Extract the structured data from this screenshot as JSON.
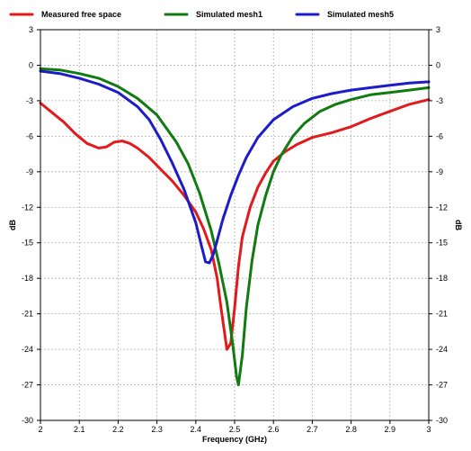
{
  "chart_data": {
    "type": "line",
    "title": "",
    "xlabel": "Frequency (GHz)",
    "ylabel": "dB",
    "xlim": [
      2,
      3
    ],
    "ylim": [
      -30,
      3
    ],
    "x_ticks": [
      2,
      2.1,
      2.2,
      2.3,
      2.4,
      2.5,
      2.6,
      2.7,
      2.8,
      2.9,
      3
    ],
    "x_tick_labels": [
      "2",
      "2.1",
      "2.2",
      "2.3",
      "2.4",
      "2.5",
      "2.6",
      "2.7",
      "2.8",
      "2.9",
      "3"
    ],
    "y_ticks": [
      3,
      0,
      -3,
      -6,
      -9,
      -12,
      -15,
      -18,
      -21,
      -24,
      -27,
      -30
    ],
    "y_tick_labels": [
      "3",
      "0",
      "-3",
      "-6",
      "-9",
      "-12",
      "-15",
      "-18",
      "-21",
      "-24",
      "-27",
      "-30"
    ],
    "grid": true,
    "legend": "top",
    "series": [
      {
        "name": "Measured free space",
        "color": "#e31a1c",
        "x": [
          2.0,
          2.03,
          2.06,
          2.09,
          2.12,
          2.15,
          2.17,
          2.19,
          2.21,
          2.23,
          2.25,
          2.28,
          2.31,
          2.34,
          2.37,
          2.4,
          2.42,
          2.44,
          2.455,
          2.465,
          2.475,
          2.48,
          2.49,
          2.5,
          2.51,
          2.52,
          2.54,
          2.56,
          2.58,
          2.6,
          2.63,
          2.66,
          2.7,
          2.75,
          2.8,
          2.85,
          2.9,
          2.95,
          3.0
        ],
        "y": [
          -3.2,
          -4.0,
          -4.8,
          -5.8,
          -6.6,
          -7.0,
          -6.9,
          -6.5,
          -6.4,
          -6.6,
          -7.0,
          -7.8,
          -8.8,
          -9.8,
          -11.0,
          -12.4,
          -13.8,
          -15.6,
          -18.0,
          -20.5,
          -22.8,
          -24.0,
          -23.5,
          -20.5,
          -17.0,
          -14.5,
          -12.0,
          -10.3,
          -9.1,
          -8.1,
          -7.3,
          -6.7,
          -6.1,
          -5.7,
          -5.2,
          -4.5,
          -3.9,
          -3.3,
          -2.9
        ]
      },
      {
        "name": "Simulated mesh1",
        "color": "#117a11",
        "x": [
          2.0,
          2.05,
          2.1,
          2.15,
          2.2,
          2.25,
          2.3,
          2.35,
          2.38,
          2.41,
          2.44,
          2.46,
          2.48,
          2.495,
          2.505,
          2.51,
          2.52,
          2.53,
          2.545,
          2.56,
          2.58,
          2.6,
          2.62,
          2.65,
          2.68,
          2.72,
          2.76,
          2.8,
          2.85,
          2.9,
          2.95,
          3.0
        ],
        "y": [
          -0.3,
          -0.4,
          -0.7,
          -1.1,
          -1.8,
          -2.8,
          -4.2,
          -6.5,
          -8.3,
          -10.8,
          -14.0,
          -16.8,
          -20.0,
          -23.5,
          -26.3,
          -27.0,
          -24.5,
          -20.5,
          -16.5,
          -13.5,
          -11.0,
          -9.0,
          -7.6,
          -6.0,
          -4.9,
          -3.9,
          -3.3,
          -2.9,
          -2.5,
          -2.3,
          -2.1,
          -1.9
        ]
      },
      {
        "name": "Simulated mesh5",
        "color": "#1c1cc8",
        "x": [
          2.0,
          2.05,
          2.1,
          2.15,
          2.2,
          2.25,
          2.28,
          2.31,
          2.34,
          2.37,
          2.4,
          2.415,
          2.425,
          2.435,
          2.445,
          2.455,
          2.47,
          2.49,
          2.51,
          2.53,
          2.56,
          2.6,
          2.65,
          2.7,
          2.75,
          2.8,
          2.85,
          2.9,
          2.95,
          3.0
        ],
        "y": [
          -0.5,
          -0.7,
          -1.1,
          -1.6,
          -2.3,
          -3.5,
          -4.6,
          -6.3,
          -8.3,
          -10.5,
          -13.3,
          -15.3,
          -16.6,
          -16.7,
          -16.0,
          -14.8,
          -13.0,
          -11.0,
          -9.3,
          -7.8,
          -6.1,
          -4.6,
          -3.5,
          -2.8,
          -2.4,
          -2.1,
          -1.9,
          -1.7,
          -1.5,
          -1.4
        ]
      }
    ]
  }
}
